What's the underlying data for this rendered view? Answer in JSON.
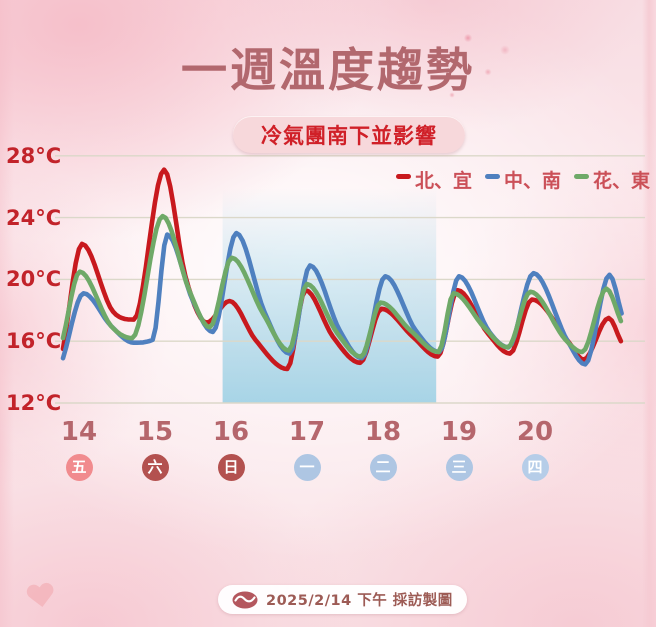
{
  "title": "一週溫度趨勢",
  "alert_badge": "冷氣團南下並影響",
  "footer": {
    "credit": "2025/2/14 下午 採訪製圖"
  },
  "legend": [
    {
      "label": "北、宜",
      "color": "#c8191e"
    },
    {
      "label": "中、南",
      "color": "#4f80bf"
    },
    {
      "label": "花、東",
      "color": "#6fa968"
    }
  ],
  "colors": {
    "title": "#b2686e",
    "axis_label_red": "#c2232a",
    "date_label": "#b5666c",
    "alert_text": "#d02028",
    "alert_bg": "#f7d8db",
    "gridline": "#dbd8c9",
    "highlight_blue": "#9ed1e5",
    "badge_friday": "#f18b8e",
    "badge_weekend": "#b3514f",
    "badge_weekday": "#aec6e3"
  },
  "chart_data": {
    "type": "line",
    "title": "一週溫度趨勢",
    "unit": "°C",
    "ylim": [
      12,
      28
    ],
    "yticks": [
      28,
      24,
      20,
      16,
      12
    ],
    "ytick_labels": [
      "28°C",
      "24°C",
      "20°C",
      "16°C",
      "12°C"
    ],
    "grid": true,
    "legend_position": "top-right",
    "days": [
      {
        "date": "14",
        "weekday": "五",
        "badge_color": "#f18b8e"
      },
      {
        "date": "15",
        "weekday": "六",
        "badge_color": "#b3514f"
      },
      {
        "date": "16",
        "weekday": "日",
        "badge_color": "#b3514f"
      },
      {
        "date": "17",
        "weekday": "一",
        "badge_color": "#aec6e3"
      },
      {
        "date": "18",
        "weekday": "二",
        "badge_color": "#aec6e3"
      },
      {
        "date": "19",
        "weekday": "三",
        "badge_color": "#aec6e3"
      },
      {
        "date": "20",
        "weekday": "四",
        "badge_color": "#b6cde8"
      }
    ],
    "highlight_region": {
      "from_day": 15.89,
      "to_day": 18.7,
      "color": "#9ed1e5"
    },
    "series": [
      {
        "name": "北、宜",
        "color": "#c8191e",
        "points": [
          [
            13.79,
            15.5
          ],
          [
            14.04,
            22.3
          ],
          [
            14.45,
            17.9
          ],
          [
            14.72,
            17.4
          ],
          [
            15.12,
            27.1
          ],
          [
            15.4,
            20.2
          ],
          [
            15.68,
            17.2
          ],
          [
            15.98,
            18.6
          ],
          [
            16.32,
            16.1
          ],
          [
            16.74,
            14.2
          ],
          [
            16.98,
            19.3
          ],
          [
            17.34,
            16.3
          ],
          [
            17.7,
            14.6
          ],
          [
            17.98,
            18.1
          ],
          [
            18.39,
            16.3
          ],
          [
            18.72,
            15.0
          ],
          [
            18.98,
            19.3
          ],
          [
            19.38,
            16.5
          ],
          [
            19.67,
            15.2
          ],
          [
            19.96,
            18.7
          ],
          [
            20.45,
            15.9
          ],
          [
            20.64,
            14.8
          ],
          [
            20.97,
            17.5
          ],
          [
            21.13,
            16.0
          ]
        ]
      },
      {
        "name": "中、南",
        "color": "#4f80bf",
        "points": [
          [
            13.79,
            14.9
          ],
          [
            14.06,
            19.1
          ],
          [
            14.42,
            17.0
          ],
          [
            14.72,
            15.9
          ],
          [
            14.97,
            16.1
          ],
          [
            15.16,
            22.9
          ],
          [
            15.5,
            18.6
          ],
          [
            15.76,
            16.6
          ],
          [
            16.07,
            23.0
          ],
          [
            16.44,
            17.9
          ],
          [
            16.77,
            15.2
          ],
          [
            17.04,
            20.9
          ],
          [
            17.43,
            16.7
          ],
          [
            17.72,
            14.9
          ],
          [
            18.03,
            20.2
          ],
          [
            18.43,
            16.7
          ],
          [
            18.74,
            15.3
          ],
          [
            19.0,
            20.2
          ],
          [
            19.4,
            16.6
          ],
          [
            19.65,
            15.6
          ],
          [
            19.98,
            20.4
          ],
          [
            20.43,
            16.0
          ],
          [
            20.66,
            14.5
          ],
          [
            20.98,
            20.3
          ],
          [
            21.14,
            17.8
          ]
        ]
      },
      {
        "name": "花、東",
        "color": "#6fa968",
        "points": [
          [
            13.79,
            16.2
          ],
          [
            14.01,
            20.5
          ],
          [
            14.42,
            17.0
          ],
          [
            14.7,
            16.2
          ],
          [
            15.1,
            24.1
          ],
          [
            15.45,
            19.3
          ],
          [
            15.72,
            16.9
          ],
          [
            16.01,
            21.4
          ],
          [
            16.42,
            17.8
          ],
          [
            16.76,
            15.4
          ],
          [
            17.0,
            19.7
          ],
          [
            17.4,
            16.5
          ],
          [
            17.71,
            15.0
          ],
          [
            17.97,
            18.5
          ],
          [
            18.36,
            16.7
          ],
          [
            18.73,
            15.3
          ],
          [
            18.93,
            19.1
          ],
          [
            19.33,
            16.9
          ],
          [
            19.64,
            15.6
          ],
          [
            19.94,
            19.2
          ],
          [
            20.4,
            16.1
          ],
          [
            20.62,
            15.3
          ],
          [
            20.94,
            19.4
          ],
          [
            21.13,
            17.3
          ]
        ]
      }
    ]
  }
}
